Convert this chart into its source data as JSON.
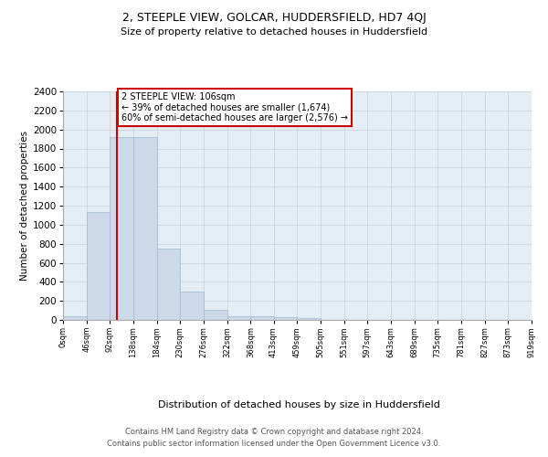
{
  "title": "2, STEEPLE VIEW, GOLCAR, HUDDERSFIELD, HD7 4QJ",
  "subtitle": "Size of property relative to detached houses in Huddersfield",
  "xlabel": "Distribution of detached houses by size in Huddersfield",
  "ylabel": "Number of detached properties",
  "bar_values": [
    35,
    1130,
    1920,
    1920,
    745,
    300,
    105,
    42,
    42,
    25,
    22,
    0,
    0,
    0,
    0,
    0,
    0,
    0,
    0,
    0
  ],
  "bin_edges": [
    0,
    46,
    92,
    138,
    184,
    230,
    276,
    322,
    368,
    413,
    459,
    505,
    551,
    597,
    643,
    689,
    735,
    781,
    827,
    873,
    919
  ],
  "tick_labels": [
    "0sqm",
    "46sqm",
    "92sqm",
    "138sqm",
    "184sqm",
    "230sqm",
    "276sqm",
    "322sqm",
    "368sqm",
    "413sqm",
    "459sqm",
    "505sqm",
    "551sqm",
    "597sqm",
    "643sqm",
    "689sqm",
    "735sqm",
    "781sqm",
    "827sqm",
    "873sqm",
    "919sqm"
  ],
  "bar_color": "#ccd9e8",
  "bar_edge_color": "#a0b8d0",
  "grid_color": "#c8d0d8",
  "bg_color": "#e4ecf4",
  "property_line_x": 106,
  "property_line_color": "#cc0000",
  "annotation_text": "2 STEEPLE VIEW: 106sqm\n← 39% of detached houses are smaller (1,674)\n60% of semi-detached houses are larger (2,576) →",
  "annotation_box_edgecolor": "#cc0000",
  "ylim_max": 2400,
  "yticks": [
    0,
    200,
    400,
    600,
    800,
    1000,
    1200,
    1400,
    1600,
    1800,
    2000,
    2200,
    2400
  ],
  "title_fontsize": 9,
  "subtitle_fontsize": 8,
  "ylabel_fontsize": 7.5,
  "xlabel_fontsize": 8,
  "tick_fontsize": 6,
  "footer_line1": "Contains HM Land Registry data © Crown copyright and database right 2024.",
  "footer_line2": "Contains public sector information licensed under the Open Government Licence v3.0."
}
